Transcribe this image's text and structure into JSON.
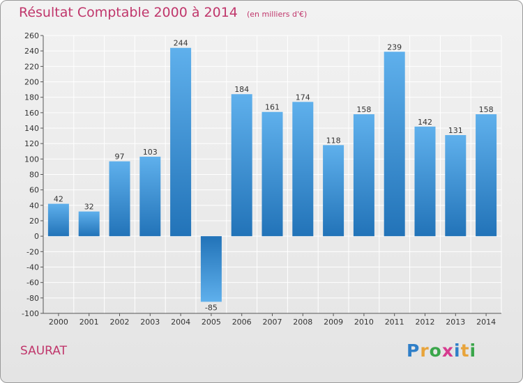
{
  "header": {
    "title": "Résultat Comptable 2000 à 2014",
    "subtitle": "(en milliers d'€)"
  },
  "footer": {
    "commune": "SAURAT",
    "logo": {
      "text": "Proxiti",
      "letters": [
        "P",
        "r",
        "o",
        "x",
        "i",
        "t",
        "i"
      ],
      "colors": [
        "#2f7fc8",
        "#e8a43b",
        "#3aa64a",
        "#d63b8f",
        "#2f7fc8",
        "#e8a43b",
        "#3aa64a"
      ]
    }
  },
  "colors": {
    "title": "#c0366b",
    "bar_light": "#5fb0ec",
    "bar_dark": "#2273b8",
    "grid": "#ffffff",
    "axis": "#555555",
    "tick_label": "#333333"
  },
  "chart_data": {
    "type": "bar",
    "title": "Résultat Comptable 2000 à 2014",
    "subtitle": "(en milliers d'€)",
    "xlabel": "",
    "ylabel": "",
    "categories": [
      "2000",
      "2001",
      "2002",
      "2003",
      "2004",
      "2005",
      "2006",
      "2007",
      "2008",
      "2009",
      "2010",
      "2011",
      "2012",
      "2013",
      "2014"
    ],
    "values": [
      42,
      32,
      97,
      103,
      244,
      -85,
      184,
      161,
      174,
      118,
      158,
      239,
      142,
      131,
      158
    ],
    "data_labels": [
      "42",
      "32",
      "97",
      "103",
      "244",
      "-85",
      "184",
      "161",
      "174",
      "118",
      "158",
      "239",
      "142",
      "131",
      "158"
    ],
    "ylim": [
      -100,
      260
    ],
    "yticks": [
      -100,
      -80,
      -60,
      -40,
      -20,
      0,
      20,
      40,
      60,
      80,
      100,
      120,
      140,
      160,
      180,
      200,
      220,
      240,
      260
    ],
    "grid": true,
    "legend": "none"
  }
}
